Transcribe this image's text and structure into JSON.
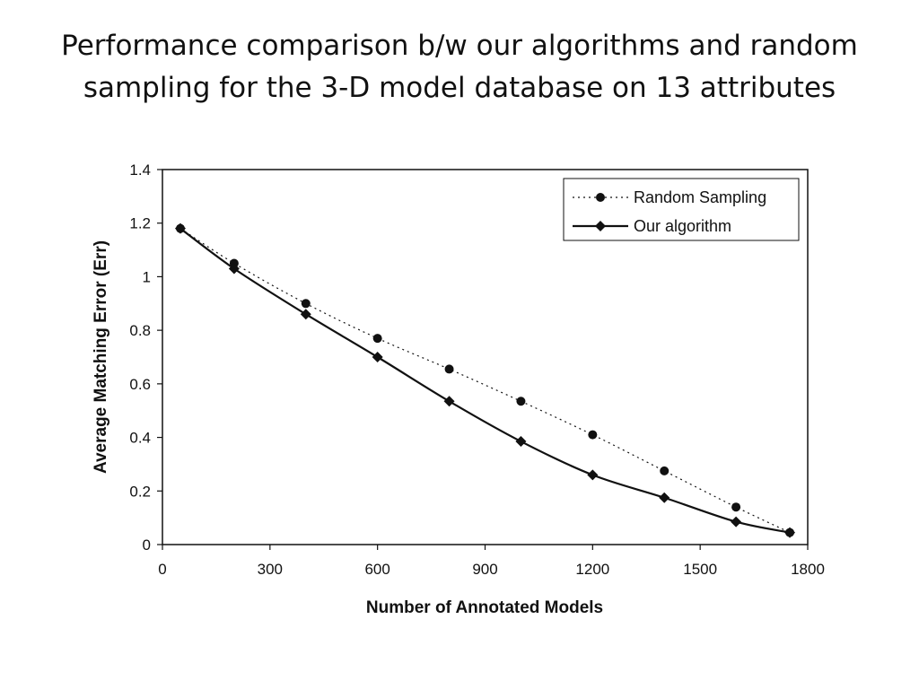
{
  "slide": {
    "title": "Performance comparison b/w our algorithms and random sampling for the 3-D model database on 13 attributes"
  },
  "chart_data": {
    "type": "line",
    "title": "",
    "xlabel": "Number of Annotated Models",
    "ylabel": "Average Matching Error (Err)",
    "xlim": [
      0,
      1800
    ],
    "ylim": [
      0,
      1.4
    ],
    "xticks": [
      0,
      300,
      600,
      900,
      1200,
      1500,
      1800
    ],
    "yticks": [
      0,
      0.2,
      0.4,
      0.6,
      0.8,
      1,
      1.2,
      1.4
    ],
    "xtick_labels": [
      "0",
      "300",
      "600",
      "900",
      "1200",
      "1500",
      "1800"
    ],
    "ytick_labels": [
      "0",
      "0.2",
      "0.4",
      "0.6",
      "0.8",
      "1",
      "1.2",
      "1.4"
    ],
    "grid": false,
    "legend_position": "top-right",
    "series": [
      {
        "name": "Random Sampling",
        "marker": "circle",
        "line_style": "dotted",
        "color": "#111111",
        "x": [
          50,
          200,
          400,
          600,
          800,
          1000,
          1200,
          1400,
          1600,
          1750
        ],
        "y": [
          1.18,
          1.05,
          0.9,
          0.77,
          0.655,
          0.535,
          0.41,
          0.275,
          0.14,
          0.045
        ]
      },
      {
        "name": "Our algorithm",
        "marker": "diamond",
        "line_style": "solid",
        "color": "#111111",
        "x": [
          50,
          200,
          400,
          600,
          800,
          1000,
          1200,
          1400,
          1600,
          1750
        ],
        "y": [
          1.18,
          1.03,
          0.86,
          0.7,
          0.535,
          0.385,
          0.26,
          0.175,
          0.085,
          0.045
        ]
      }
    ]
  }
}
